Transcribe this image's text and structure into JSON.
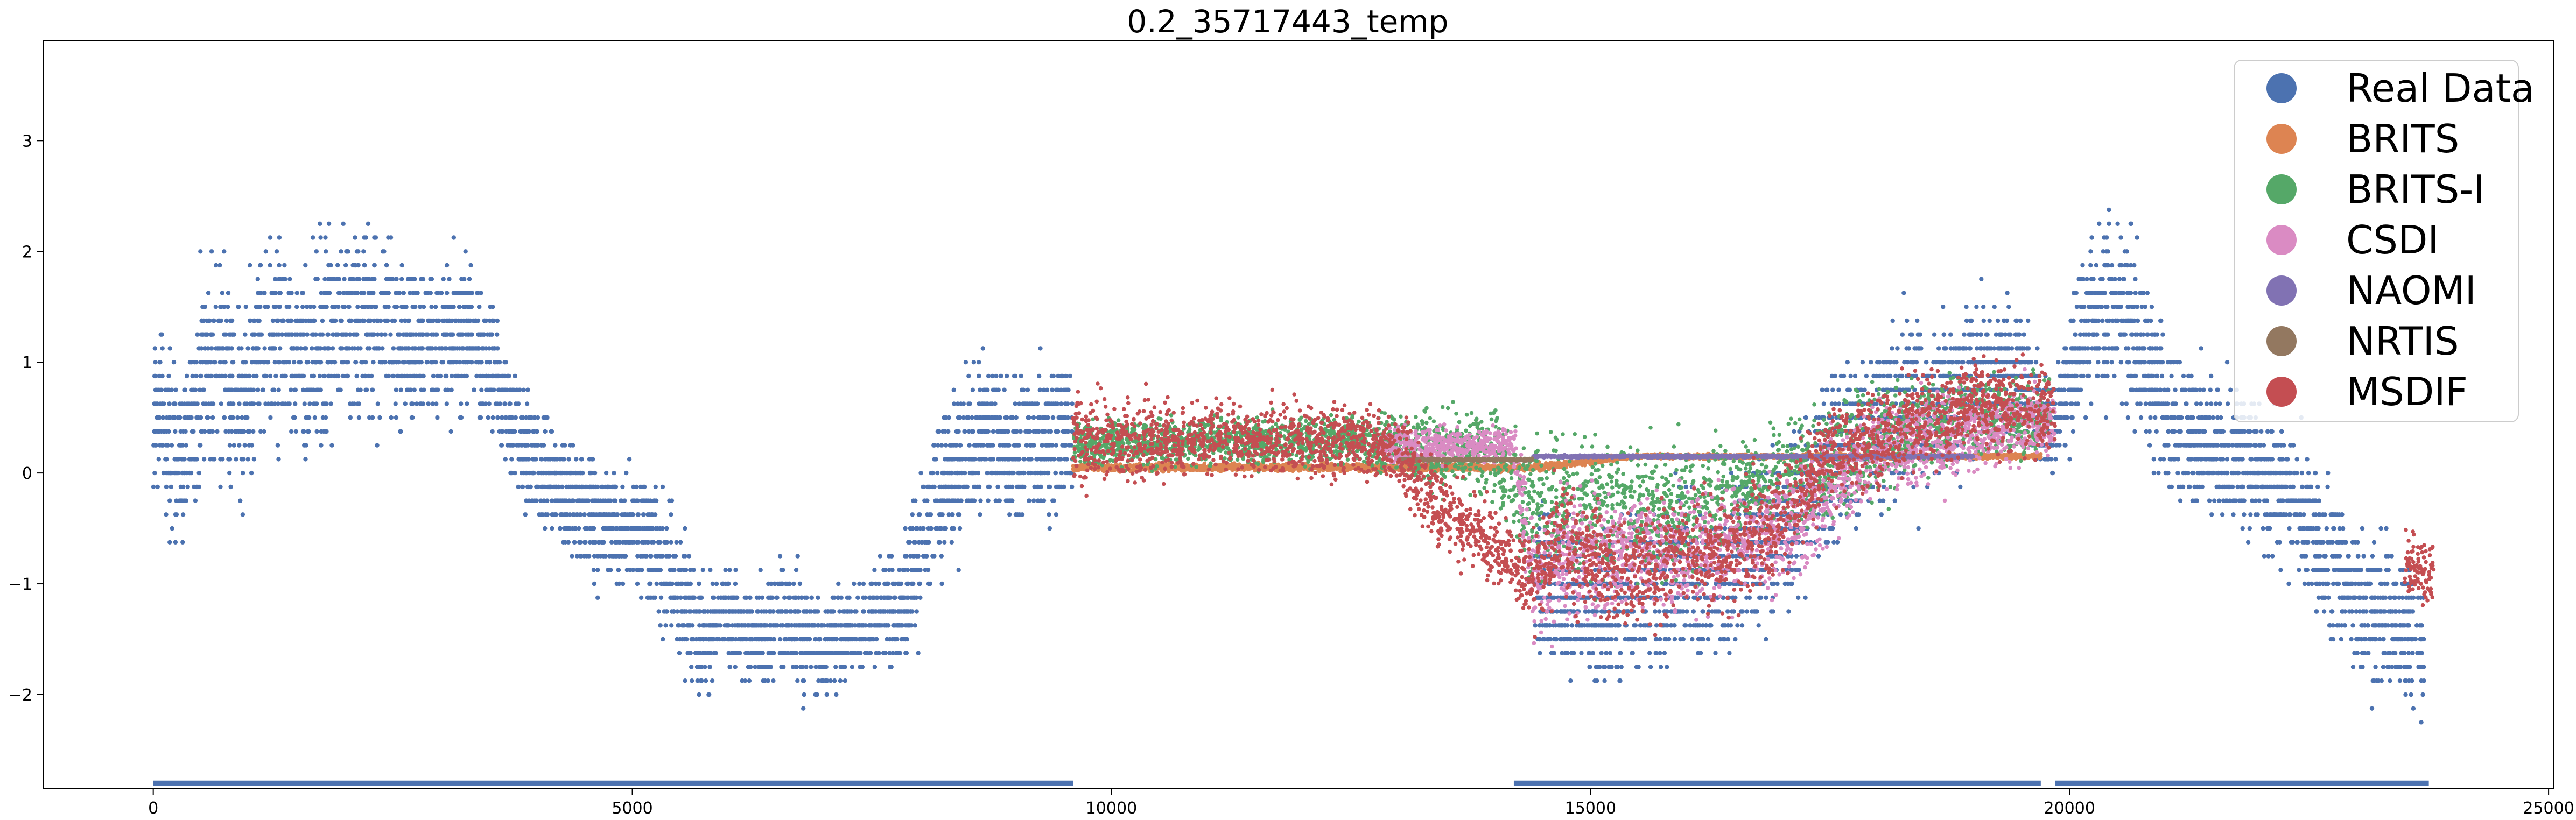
{
  "chart_data": {
    "type": "scatter",
    "title": "0.2_35717443_temp",
    "xlabel": "",
    "ylabel": "",
    "xlim": [
      -1150,
      25050
    ],
    "ylim": [
      -2.85,
      3.9
    ],
    "x_ticks": [
      0,
      5000,
      10000,
      15000,
      20000,
      25000
    ],
    "y_ticks": [
      -2,
      -1,
      0,
      1,
      2,
      3
    ],
    "grid": false,
    "legend": {
      "placement": "top-right",
      "entries": [
        {
          "name": "Real Data",
          "color": "#4c72b0"
        },
        {
          "name": "BRITS",
          "color": "#dd8452"
        },
        {
          "name": "BRITS-I",
          "color": "#55a868"
        },
        {
          "name": "CSDI",
          "color": "#da8bc3"
        },
        {
          "name": "NAOMI",
          "color": "#8172b3"
        },
        {
          "name": "NRTIS",
          "color": "#937860"
        },
        {
          "name": "MSDIF",
          "color": "#c44e52"
        }
      ]
    },
    "series": [
      {
        "name": "Real Data",
        "color": "#4c72b0",
        "x": [
          0,
          300,
          600,
          900,
          1200,
          1500,
          1800,
          2100,
          2400,
          2700,
          3000,
          3300,
          3600,
          3900,
          4200,
          4500,
          4800,
          5100,
          5400,
          5700,
          6000,
          6300,
          6600,
          6900,
          7200,
          7500,
          7800,
          8100,
          8400,
          8700,
          9000,
          9300,
          9600,
          14400,
          14700,
          15000,
          15300,
          15600,
          15900,
          16200,
          16500,
          16800,
          17100,
          17400,
          17700,
          18000,
          18300,
          18600,
          18900,
          19200,
          19500,
          19800,
          20100,
          20400,
          20700,
          21000,
          21300,
          21600,
          21900,
          22200,
          22500,
          22800,
          23100,
          23400,
          23700
        ],
        "y": [
          0.6,
          0.2,
          1.1,
          0.6,
          1.3,
          1.0,
          1.2,
          1.4,
          1.3,
          1.2,
          1.2,
          1.3,
          0.8,
          0.2,
          -0.1,
          -0.3,
          -0.5,
          -0.5,
          -0.9,
          -1.5,
          -1.3,
          -1.5,
          -1.3,
          -1.5,
          -1.5,
          -1.3,
          -1.2,
          -0.4,
          0.1,
          0.4,
          0.2,
          0.3,
          0.4,
          -1.0,
          -1.1,
          -1.3,
          -1.2,
          -1.1,
          -0.9,
          -1.0,
          -0.8,
          -0.6,
          -0.4,
          0.1,
          0.3,
          0.4,
          0.6,
          0.6,
          0.8,
          0.9,
          1.0,
          0.3,
          1.2,
          1.6,
          1.2,
          0.6,
          0.3,
          0.2,
          0.1,
          -0.1,
          -0.4,
          -0.9,
          -1.3,
          -1.3,
          -1.6
        ],
        "spread": [
          0.6,
          0.7,
          0.9,
          0.8,
          0.9,
          0.7,
          0.9,
          0.8,
          0.8,
          0.6,
          0.6,
          0.6,
          0.6,
          0.5,
          0.5,
          0.5,
          0.5,
          0.5,
          0.6,
          0.5,
          0.4,
          0.4,
          0.5,
          0.5,
          0.4,
          0.4,
          0.5,
          0.6,
          0.7,
          0.6,
          0.6,
          0.6,
          0.6,
          0.6,
          0.6,
          0.6,
          0.6,
          0.6,
          0.6,
          0.6,
          0.7,
          0.7,
          0.7,
          0.7,
          0.7,
          0.7,
          0.7,
          0.6,
          0.7,
          0.6,
          0.5,
          0.4,
          0.6,
          0.7,
          0.7,
          0.6,
          0.6,
          0.6,
          0.6,
          0.6,
          0.6,
          0.6,
          0.6,
          0.6,
          0.5
        ]
      },
      {
        "name": "BRITS",
        "color": "#dd8452",
        "x": [
          9600,
          11000,
          12500,
          13000,
          14000,
          14400,
          15500,
          17000,
          18500,
          19700
        ],
        "y": [
          0.05,
          0.05,
          0.05,
          0.05,
          0.05,
          0.05,
          0.15,
          0.15,
          0.15,
          0.15
        ],
        "spread": [
          0.03,
          0.03,
          0.03,
          0.03,
          0.03,
          0.03,
          0.02,
          0.02,
          0.02,
          0.02
        ]
      },
      {
        "name": "BRITS-I",
        "color": "#55a868",
        "x": [
          9600,
          11000,
          12500,
          13000,
          14000,
          14300,
          14600,
          15500,
          16500,
          17500,
          18500,
          19800
        ],
        "y": [
          0.25,
          0.3,
          0.3,
          0.25,
          0.2,
          -0.3,
          -0.3,
          -0.4,
          -0.2,
          0.1,
          0.5,
          0.5
        ],
        "spread": [
          0.2,
          0.2,
          0.2,
          0.3,
          0.4,
          0.6,
          0.6,
          0.6,
          0.5,
          0.5,
          0.4,
          0.3
        ]
      },
      {
        "name": "CSDI",
        "color": "#da8bc3",
        "x": [
          12800,
          13300,
          13800,
          14200,
          14400,
          14700,
          15300,
          16000,
          17000,
          18000,
          19700,
          19850
        ],
        "y": [
          0.25,
          0.25,
          0.25,
          0.25,
          -1.0,
          -0.8,
          -0.7,
          -0.7,
          -0.5,
          0.2,
          0.5,
          0.4
        ],
        "spread": [
          0.15,
          0.15,
          0.15,
          0.15,
          0.5,
          0.5,
          0.5,
          0.5,
          0.5,
          0.4,
          0.3,
          0.2
        ]
      },
      {
        "name": "NAOMI",
        "color": "#8172b3",
        "x": [
          14400,
          15000,
          16000,
          17000,
          18000,
          19000
        ],
        "y": [
          0.15,
          0.15,
          0.15,
          0.15,
          0.15,
          0.15
        ],
        "spread": [
          0.01,
          0.01,
          0.01,
          0.01,
          0.01,
          0.01
        ]
      },
      {
        "name": "NRTIS",
        "color": "#937860",
        "x": [
          13000,
          13500,
          14000,
          14400
        ],
        "y": [
          0.12,
          0.12,
          0.12,
          0.12
        ],
        "spread": [
          0.01,
          0.01,
          0.01,
          0.01
        ]
      },
      {
        "name": "MSDIF",
        "color": "#c44e52",
        "x": [
          9600,
          10000,
          10500,
          11000,
          11500,
          12000,
          12500,
          13000,
          13300,
          13600,
          13900,
          14200,
          14400,
          14700,
          15000,
          15500,
          16000,
          16500,
          17000,
          17500,
          18000,
          18500,
          19000,
          19700,
          19850,
          23500,
          23800
        ],
        "y": [
          0.3,
          0.3,
          0.3,
          0.3,
          0.3,
          0.3,
          0.3,
          0.2,
          -0.2,
          -0.4,
          -0.6,
          -0.8,
          -1.0,
          -0.6,
          -0.8,
          -0.9,
          -0.7,
          -0.7,
          -0.4,
          0.2,
          0.3,
          0.5,
          0.6,
          0.6,
          0.5,
          -0.8,
          -0.9
        ],
        "spread": [
          0.4,
          0.35,
          0.35,
          0.3,
          0.3,
          0.3,
          0.3,
          0.3,
          0.4,
          0.35,
          0.3,
          0.3,
          0.4,
          0.5,
          0.5,
          0.5,
          0.5,
          0.5,
          0.5,
          0.4,
          0.4,
          0.4,
          0.4,
          0.4,
          0.3,
          0.3,
          0.3
        ]
      }
    ],
    "missing_mask": [
      {
        "x_start": 0,
        "x_end": 9600,
        "y": -2.8
      },
      {
        "x_start": 14200,
        "x_end": 19700,
        "y": -2.8
      },
      {
        "x_start": 19850,
        "x_end": 23750,
        "y": -2.8
      }
    ]
  }
}
